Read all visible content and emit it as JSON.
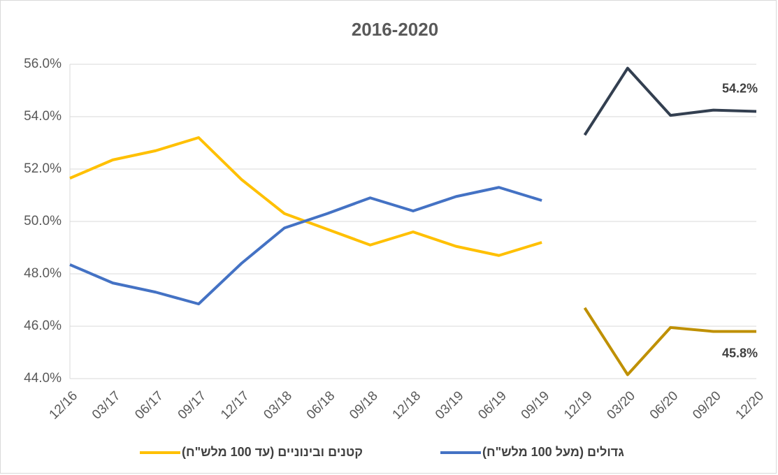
{
  "chart_data": {
    "type": "line",
    "title": "2016-2020",
    "categories": [
      "12/16",
      "03/17",
      "06/17",
      "09/17",
      "12/17",
      "03/18",
      "06/18",
      "09/18",
      "12/18",
      "03/19",
      "06/19",
      "09/19",
      "12/19",
      "03/20",
      "06/20",
      "09/20",
      "12/20"
    ],
    "series": [
      {
        "name": "קטנים ובינוניים (עד 100 מלש\"ח)",
        "color": "#ffc000",
        "values": [
          51.65,
          52.35,
          52.7,
          53.2,
          51.6,
          50.3,
          49.7,
          49.1,
          49.6,
          49.05,
          48.7,
          49.2,
          null,
          null,
          null,
          null,
          null
        ]
      },
      {
        "name": "גדולים (מעל 100 מלש\"ח)",
        "color": "#4472c4",
        "values": [
          48.35,
          47.65,
          47.3,
          46.85,
          48.4,
          49.75,
          50.3,
          50.9,
          50.4,
          50.95,
          51.3,
          50.8,
          null,
          null,
          null,
          null,
          null
        ]
      },
      {
        "color": "#333f50",
        "values": [
          null,
          null,
          null,
          null,
          null,
          null,
          null,
          null,
          null,
          null,
          null,
          null,
          53.3,
          55.85,
          54.05,
          54.25,
          54.2
        ],
        "value_labels": [
          null,
          null,
          null,
          null,
          null,
          null,
          null,
          null,
          null,
          null,
          null,
          null,
          null,
          null,
          null,
          null,
          "54.2%"
        ]
      },
      {
        "color": "#bf9000",
        "values": [
          null,
          null,
          null,
          null,
          null,
          null,
          null,
          null,
          null,
          null,
          null,
          null,
          46.7,
          44.15,
          45.95,
          45.8,
          45.8
        ],
        "value_labels": [
          null,
          null,
          null,
          null,
          null,
          null,
          null,
          null,
          null,
          null,
          null,
          null,
          null,
          null,
          null,
          null,
          "45.8%"
        ]
      }
    ],
    "ylim": [
      44,
      56
    ],
    "yticks": [
      {
        "value": 44,
        "label": "44.0%"
      },
      {
        "value": 46,
        "label": "46.0%"
      },
      {
        "value": 48,
        "label": "48.0%"
      },
      {
        "value": 50,
        "label": "50.0%"
      },
      {
        "value": 52,
        "label": "52.0%"
      },
      {
        "value": 54,
        "label": "54.0%"
      },
      {
        "value": 56,
        "label": "56.0%"
      }
    ],
    "grid": true
  }
}
